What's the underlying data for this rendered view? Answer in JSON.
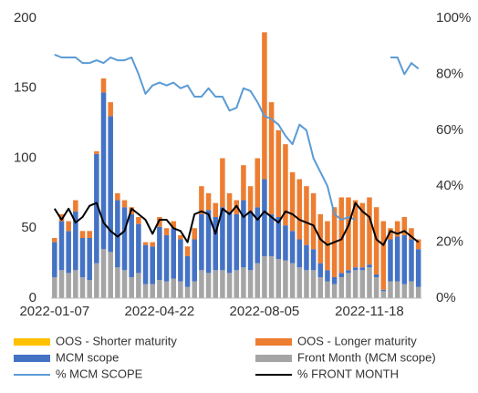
{
  "chart_data": {
    "type": "bar",
    "stacked": true,
    "categories": [
      "2022-01-07",
      null,
      null,
      null,
      null,
      null,
      null,
      null,
      null,
      null,
      null,
      null,
      null,
      null,
      null,
      "2022-04-22",
      null,
      null,
      null,
      null,
      null,
      null,
      null,
      null,
      null,
      null,
      null,
      null,
      null,
      null,
      "2022-08-05",
      null,
      null,
      null,
      null,
      null,
      null,
      null,
      null,
      null,
      null,
      null,
      null,
      null,
      null,
      "2022-11-18",
      null,
      null,
      null,
      null,
      null,
      null,
      null
    ],
    "ylim": [
      0,
      200
    ],
    "yticks": [
      0,
      50,
      100,
      150,
      200
    ],
    "y2lim": [
      0,
      100
    ],
    "y2ticks": [
      {
        "value": 0,
        "label": "0%"
      },
      {
        "value": 20,
        "label": "20%"
      },
      {
        "value": 40,
        "label": "40%"
      },
      {
        "value": 60,
        "label": "60%"
      },
      {
        "value": 80,
        "label": "80%"
      },
      {
        "value": 100,
        "label": "100%"
      }
    ],
    "grid": false,
    "series": [
      {
        "name": "Front Month (MCM scope)",
        "color": "#a5a5a5",
        "values": [
          15,
          20,
          18,
          20,
          15,
          13,
          25,
          35,
          33,
          22,
          20,
          15,
          18,
          10,
          10,
          13,
          12,
          14,
          12,
          8,
          12,
          20,
          18,
          20,
          20,
          18,
          20,
          22,
          20,
          25,
          30,
          30,
          28,
          27,
          25,
          22,
          20,
          20,
          15,
          12,
          10,
          15,
          18,
          20,
          20,
          22,
          15,
          5,
          12,
          12,
          10,
          12,
          8
        ]
      },
      {
        "name": "MCM scope",
        "color": "#4472c4",
        "values": [
          25,
          35,
          30,
          42,
          28,
          30,
          78,
          112,
          97,
          48,
          45,
          45,
          35,
          28,
          27,
          38,
          33,
          36,
          30,
          22,
          30,
          40,
          45,
          38,
          45,
          44,
          40,
          48,
          42,
          40,
          55,
          30,
          30,
          25,
          23,
          20,
          18,
          15,
          10,
          8,
          5,
          3,
          2,
          2,
          2,
          2,
          2,
          1,
          30,
          32,
          35,
          30,
          27
        ]
      },
      {
        "name": "OOS - Longer maturity",
        "color": "#ed7d31",
        "values": [
          3,
          5,
          7,
          8,
          5,
          5,
          2,
          10,
          10,
          5,
          5,
          5,
          5,
          2,
          3,
          7,
          5,
          5,
          3,
          7,
          8,
          20,
          12,
          10,
          35,
          13,
          10,
          25,
          18,
          35,
          105,
          80,
          62,
          58,
          42,
          43,
          42,
          40,
          35,
          35,
          50,
          54,
          52,
          48,
          46,
          48,
          48,
          49,
          8,
          11,
          13,
          8,
          7
        ]
      },
      {
        "name": "OOS - Shorter maturity",
        "color": "#ffc000",
        "values": [
          0,
          0,
          0,
          0,
          0,
          0,
          0,
          0,
          0,
          0,
          0,
          0,
          0,
          0,
          0,
          0,
          0,
          0,
          0,
          0,
          0,
          0,
          0,
          0,
          0,
          0,
          0,
          0,
          0,
          0,
          0,
          0,
          0,
          0,
          0,
          0,
          0,
          0,
          0,
          0,
          0,
          0,
          0,
          0,
          0,
          0,
          0,
          0,
          0,
          0,
          0,
          0,
          0
        ]
      },
      {
        "name": "% MCM SCOPE",
        "type": "line",
        "axis": "y2",
        "color": "#5b9bd5",
        "values": [
          87,
          86,
          86,
          86,
          84,
          84,
          85,
          84,
          86,
          85,
          85,
          86,
          80,
          73,
          76,
          77,
          76,
          77,
          75,
          76,
          72,
          72,
          75,
          72,
          72,
          67,
          68,
          75,
          74,
          70,
          65,
          64,
          62,
          58,
          55,
          62,
          60,
          50,
          45,
          40,
          30,
          28,
          29,
          28,
          null,
          null,
          null,
          null,
          86,
          86,
          80,
          84,
          82
        ]
      },
      {
        "name": "% FRONT MONTH",
        "type": "line",
        "axis": "y2",
        "color": "#000000",
        "values": [
          32,
          28,
          32,
          27,
          29,
          33,
          34,
          27,
          24,
          22,
          24,
          32,
          30,
          28,
          23,
          28,
          28,
          25,
          24,
          20,
          30,
          31,
          30,
          23,
          32,
          30,
          33,
          29,
          31,
          28,
          31,
          29,
          27,
          31,
          30,
          28,
          27,
          26,
          21,
          19,
          20,
          21,
          26,
          34,
          31,
          29,
          21,
          19,
          24,
          23,
          24,
          22,
          20
        ]
      }
    ]
  }
}
